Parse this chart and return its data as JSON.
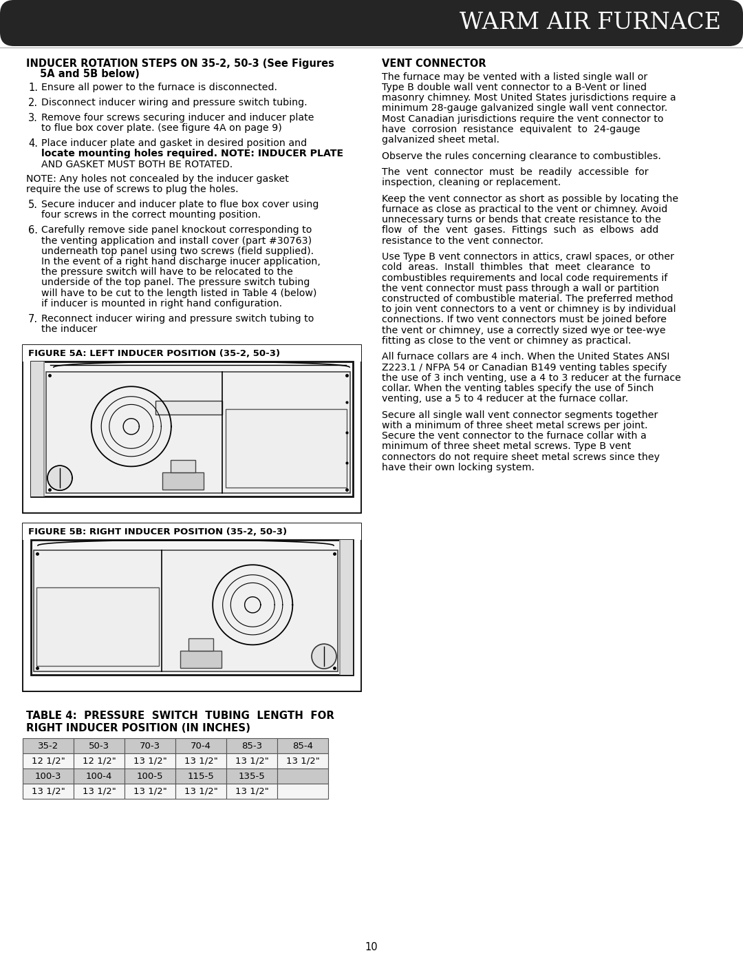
{
  "header_bg": "#252525",
  "header_text": "WARM AIR FURNACE",
  "header_text_color": "#ffffff",
  "page_bg": "#ffffff",
  "page_number": "10",
  "left_col_title_line1": "INDUCER ROTATION STEPS ON 35-2, 50-3 (See Figures",
  "left_col_title_line2": "    5A and 5B below)",
  "steps": [
    [
      "Ensure all power to the furnace is disconnected."
    ],
    [
      "Disconnect inducer wiring and pressure switch tubing."
    ],
    [
      "Remove four screws securing inducer and inducer plate",
      "to flue box cover plate. (see figure 4A on page 9)"
    ],
    [
      "Place inducer plate and gasket in desired position and",
      "locate mounting holes required. NOTE: INDUCER PLATE",
      "AND GASKET MUST BOTH BE ROTATED.",
      "",
      "NOTE: Any holes not concealed by the inducer gasket",
      "require the use of screws to plug the holes."
    ],
    [
      "Secure inducer and inducer plate to flue box cover using",
      "four screws in the correct mounting position."
    ],
    [
      "Carefully remove side panel knockout corresponding to",
      "the venting application and install cover (part #30763)",
      "underneath top panel using two screws (field supplied).",
      "In the event of a right hand discharge inucer application,",
      "the pressure switch will have to be relocated to the",
      "underside of the top panel. The pressure switch tubing",
      "will have to be cut to the length listed in Table 4 (below)",
      "if inducer is mounted in right hand configuration."
    ],
    [
      "Reconnect inducer wiring and pressure switch tubing to",
      "the inducer"
    ]
  ],
  "fig5a_title": "FIGURE 5A: LEFT INDUCER POSITION (35-2, 50-3)",
  "fig5b_title": "FIGURE 5B: RIGHT INDUCER POSITION (35-2, 50-3)",
  "right_col_title": "VENT CONNECTOR",
  "vent_paragraphs": [
    [
      "The furnace may be vented with a listed single wall or",
      "Type B double wall vent connector to a B-Vent or lined",
      "masonry chimney. Most United States jurisdictions require a",
      "minimum 28-gauge galvanized single wall vent connector.",
      "Most Canadian jurisdictions require the vent connector to",
      "have  corrosion  resistance  equivalent  to  24-gauge",
      "galvanized sheet metal."
    ],
    [
      "Observe the rules concerning clearance to combustibles."
    ],
    [
      "The  vent  connector  must  be  readily  accessible  for",
      "inspection, cleaning or replacement."
    ],
    [
      "Keep the vent connector as short as possible by locating the",
      "furnace as close as practical to the vent or chimney. Avoid",
      "unnecessary turns or bends that create resistance to the",
      "flow  of  the  vent  gases.  Fittings  such  as  elbows  add",
      "resistance to the vent connector."
    ],
    [
      "Use Type B vent connectors in attics, crawl spaces, or other",
      "cold  areas.  Install  thimbles  that  meet  clearance  to",
      "combustibles requirements and local code requirements if",
      "the vent connector must pass through a wall or partition",
      "constructed of combustible material. The preferred method",
      "to join vent connectors to a vent or chimney is by individual",
      "connections. If two vent connectors must be joined before",
      "the vent or chimney, use a correctly sized wye or tee-wye",
      "fitting as close to the vent or chimney as practical."
    ],
    [
      "All furnace collars are 4 inch. When the United States ANSI",
      "Z223.1 / NFPA 54 or Canadian B149 venting tables specify",
      "the use of 3 inch venting, use a 4 to 3 reducer at the furnace",
      "collar. When the venting tables specify the use of 5inch",
      "venting, use a 5 to 4 reducer at the furnace collar."
    ],
    [
      "Secure all single wall vent connector segments together",
      "with a minimum of three sheet metal screws per joint.",
      "Secure the vent connector to the furnace collar with a",
      "minimum of three sheet metal screws. Type B vent",
      "connectors do not require sheet metal screws since they",
      "have their own locking system."
    ]
  ],
  "table_title_line1": "TABLE 4:  PRESSURE  SWITCH  TUBING  LENGTH  FOR",
  "table_title_line2": "RIGHT INDUCER POSITION (IN INCHES)",
  "table_headers": [
    "35-2",
    "50-3",
    "70-3",
    "70-4",
    "85-3",
    "85-4"
  ],
  "table_row1": [
    "12 1/2\"",
    "12 1/2\"",
    "13 1/2\"",
    "13 1/2\"",
    "13 1/2\"",
    "13 1/2\""
  ],
  "table_row2": [
    "100-3",
    "100-4",
    "100-5",
    "115-5",
    "135-5",
    ""
  ],
  "table_row3": [
    "13 1/2\"",
    "13 1/2\"",
    "13 1/2\"",
    "13 1/2\"",
    "13 1/2\"",
    ""
  ]
}
